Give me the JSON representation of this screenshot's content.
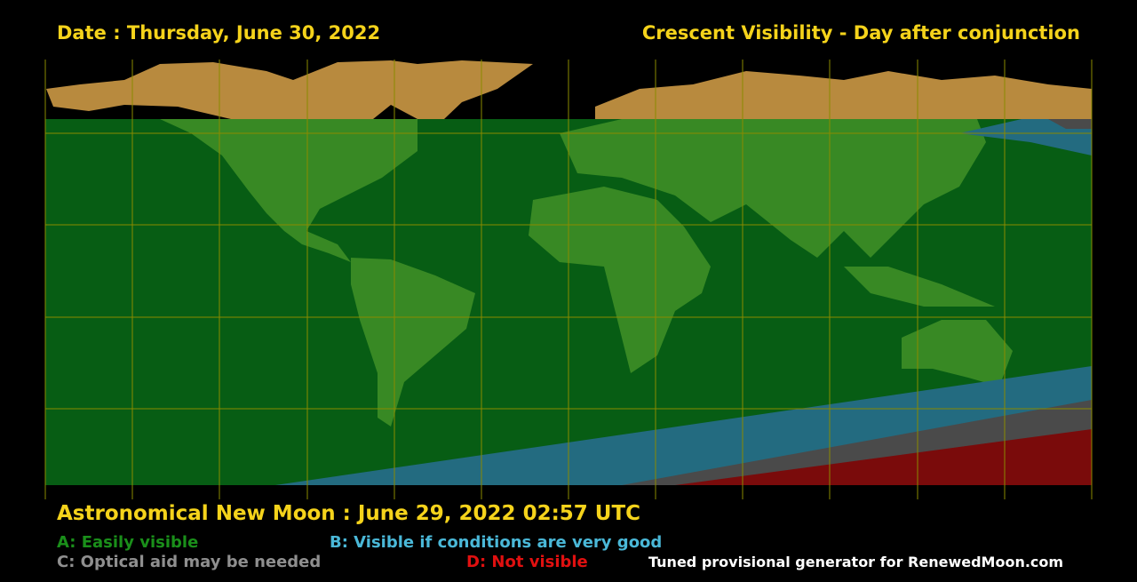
{
  "header": {
    "date": "Date : Thursday, June 30, 2022",
    "title": "Crescent Visibility - Day after conjunction"
  },
  "footer": {
    "new_moon": "Astronomical New Moon : June 29, 2022 02:57 UTC",
    "legend": [
      {
        "label": "A: Easily visible"
      },
      {
        "label": "B: Visible if conditions are very good"
      },
      {
        "label": "C: Optical aid may be needed"
      },
      {
        "label": "D: Not visible"
      }
    ],
    "credit": "Tuned provisional generator for RenewedMoon.com"
  }
}
